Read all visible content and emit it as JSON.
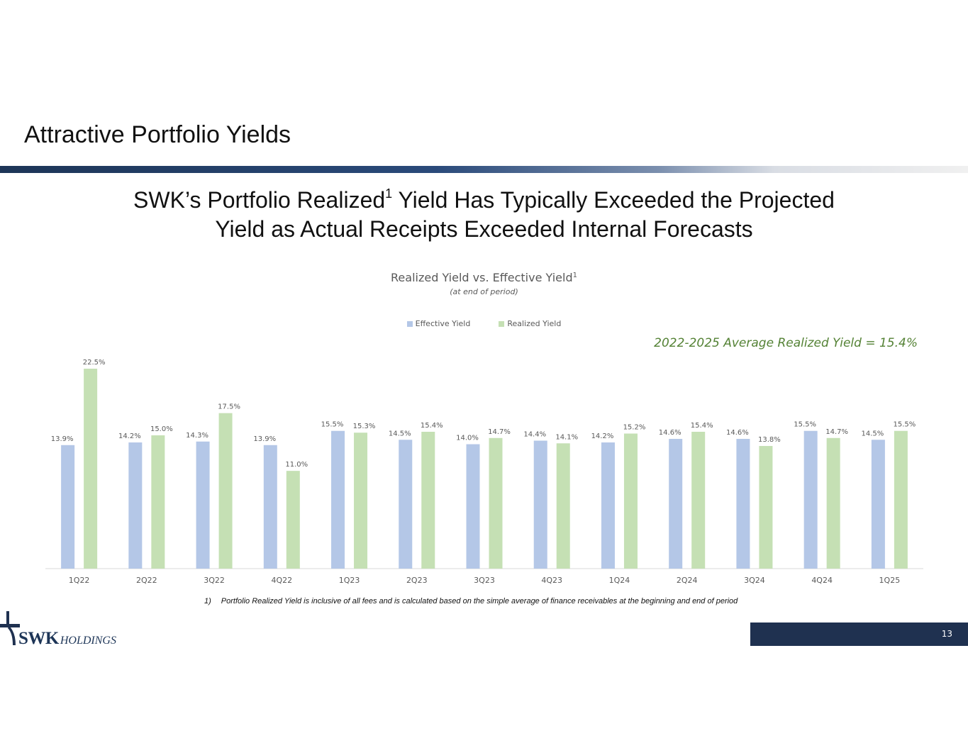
{
  "slide": {
    "title": "Attractive Portfolio Yields",
    "subtitle_line1_a": "SWK’s Portfolio Realized",
    "subtitle_sup": "1",
    "subtitle_line1_b": " Yield Has Typically Exceeded the Projected",
    "subtitle_line2": "Yield as Actual Receipts Exceeded Internal Forecasts",
    "average_note": "2022-2025 Average Realized Yield = 15.4%",
    "footnote_number": "1)",
    "footnote_text": "Portfolio Realized Yield is inclusive of all fees and is calculated based on the simple average of finance receivables at the beginning and end of period",
    "page_number": "13",
    "logo_main": "SWK",
    "logo_sub": "HOLDINGS"
  },
  "colors": {
    "effective": "#b4c7e7",
    "realized": "#c5e0b4",
    "brand_navy": "#1f3150",
    "accent_green": "#548235"
  },
  "chart_data": {
    "type": "bar",
    "title": "Realized Yield vs. Effective Yield",
    "title_sup": "1",
    "subtitle": "(at end of period)",
    "categories": [
      "1Q22",
      "2Q22",
      "3Q22",
      "4Q22",
      "1Q23",
      "2Q23",
      "3Q23",
      "4Q23",
      "1Q24",
      "2Q24",
      "3Q24",
      "4Q24",
      "1Q25"
    ],
    "series": [
      {
        "name": "Effective Yield",
        "values": [
          13.9,
          14.2,
          14.3,
          13.9,
          15.5,
          14.5,
          14.0,
          14.4,
          14.2,
          14.6,
          14.6,
          15.5,
          14.5
        ]
      },
      {
        "name": "Realized Yield",
        "values": [
          22.5,
          15.0,
          17.5,
          11.0,
          15.3,
          15.4,
          14.7,
          14.1,
          15.2,
          15.4,
          13.8,
          14.7,
          15.5
        ]
      }
    ],
    "value_format": "percent_1dp",
    "ylim": [
      0,
      25
    ],
    "legend": "top-center",
    "grid": false,
    "xlabel": "",
    "ylabel": ""
  }
}
